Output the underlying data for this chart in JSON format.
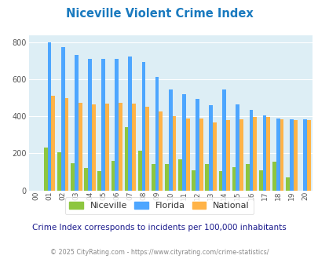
{
  "title": "Niceville Violent Crime Index",
  "years": [
    "00",
    "01",
    "02",
    "03",
    "04",
    "05",
    "06",
    "07",
    "08",
    "09",
    "10",
    "11",
    "12",
    "13",
    "14",
    "15",
    "16",
    "17",
    "18",
    "19",
    "20"
  ],
  "niceville": [
    0,
    232,
    207,
    148,
    120,
    103,
    160,
    343,
    213,
    143,
    143,
    168,
    110,
    143,
    103,
    127,
    143,
    107,
    155,
    70,
    0
  ],
  "florida": [
    0,
    800,
    775,
    733,
    710,
    710,
    710,
    723,
    693,
    612,
    547,
    518,
    495,
    462,
    547,
    465,
    433,
    405,
    390,
    385,
    383
  ],
  "national": [
    0,
    510,
    498,
    475,
    463,
    470,
    475,
    468,
    453,
    428,
    400,
    388,
    388,
    368,
    378,
    383,
    397,
    398,
    383,
    382,
    381
  ],
  "color_niceville": "#8dc63f",
  "color_florida": "#4da6ff",
  "color_national": "#ffb347",
  "plot_bg": "#ddeef5",
  "grid_color": "#ffffff",
  "title_color": "#1a7abf",
  "ylim": [
    0,
    840
  ],
  "yticks": [
    0,
    200,
    400,
    600,
    800
  ],
  "subtitle": "Crime Index corresponds to incidents per 100,000 inhabitants",
  "footer": "© 2025 CityRating.com - https://www.cityrating.com/crime-statistics/",
  "subtitle_color": "#1a1a8c",
  "footer_color": "#888888",
  "legend_text_color": "#333333"
}
